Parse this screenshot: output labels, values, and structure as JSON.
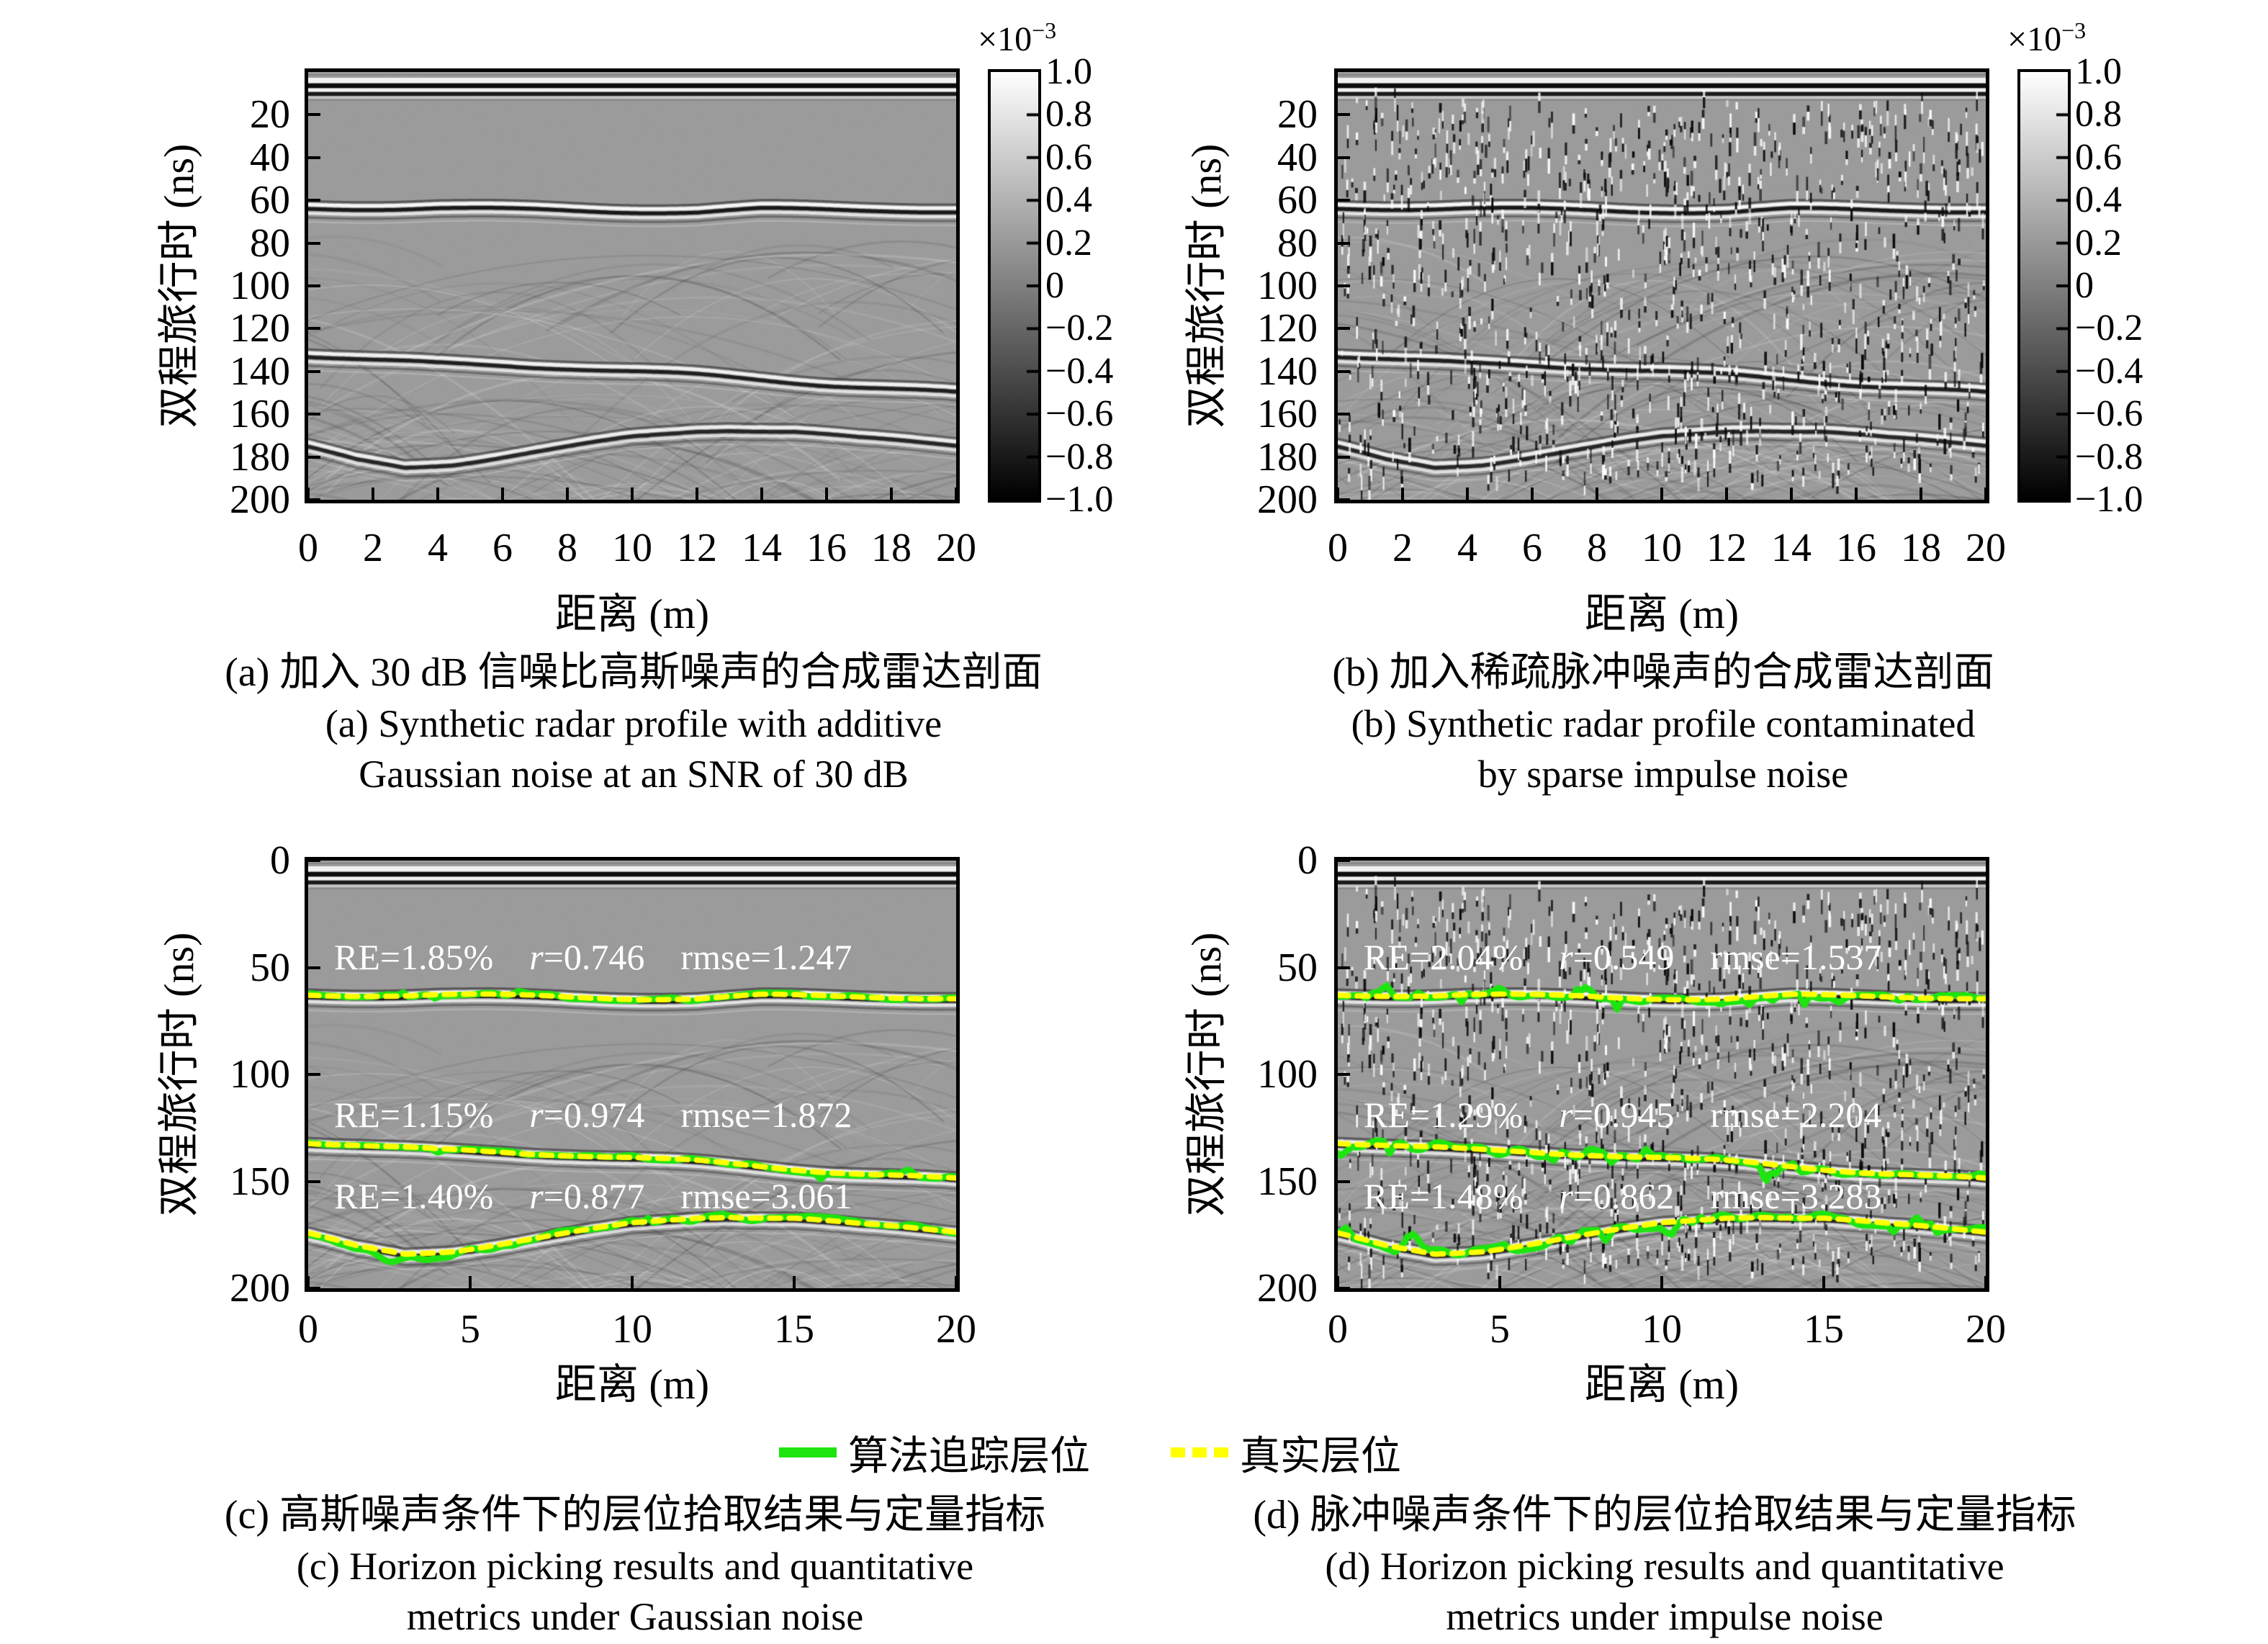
{
  "colors": {
    "plot_background": "#9b9b9b",
    "tracked_green": "#1ee410",
    "truth_yellow": "#ffff00",
    "metric_text": "#ffffff",
    "axis": "#000000"
  },
  "legend": {
    "tracked_label": "算法追踪层位",
    "truth_label": "真实层位"
  },
  "colorbar": {
    "exp_base": "×10",
    "exp_sup": "−3",
    "ticks": [
      "1.0",
      "0.8",
      "0.6",
      "0.4",
      "0.2",
      "0",
      "−0.2",
      "−0.4",
      "−0.6",
      "−0.8",
      "−1.0"
    ],
    "range": [
      -1.0,
      1.0
    ]
  },
  "horizons_ns": {
    "h1": [
      [
        0,
        63
      ],
      [
        2,
        62.5
      ],
      [
        4,
        62
      ],
      [
        6,
        62.5
      ],
      [
        8,
        63
      ],
      [
        10,
        63.5
      ],
      [
        12,
        64
      ],
      [
        14,
        63
      ],
      [
        16,
        63.5
      ],
      [
        18,
        64
      ],
      [
        20,
        65
      ]
    ],
    "h2": [
      [
        0,
        131
      ],
      [
        2,
        133
      ],
      [
        4,
        134.5
      ],
      [
        6,
        135.5
      ],
      [
        8,
        137
      ],
      [
        10,
        139
      ],
      [
        12,
        141
      ],
      [
        14,
        143.5
      ],
      [
        16,
        146
      ],
      [
        18,
        148
      ],
      [
        20,
        150
      ]
    ],
    "h3": [
      [
        0,
        174
      ],
      [
        1.5,
        180
      ],
      [
        3,
        183.5
      ],
      [
        4.5,
        182
      ],
      [
        6,
        179
      ],
      [
        8,
        175
      ],
      [
        10,
        170.5
      ],
      [
        12,
        167.5
      ],
      [
        13,
        167
      ],
      [
        15,
        168
      ],
      [
        17,
        171
      ],
      [
        20,
        173.5
      ]
    ]
  },
  "chart_data": [
    {
      "id": "a",
      "type": "heatmap",
      "noise": "additive Gaussian, SNR 30 dB",
      "impulse": false,
      "overlays": false,
      "xlabel": "距离 (m)",
      "ylabel": "双程旅行时 (ns)",
      "xlim": [
        0,
        20
      ],
      "ylim": [
        200,
        0
      ],
      "xticks": [
        0,
        2,
        4,
        6,
        8,
        10,
        12,
        14,
        16,
        18,
        20
      ],
      "yticks": [
        20,
        40,
        60,
        80,
        100,
        120,
        140,
        160,
        180,
        200
      ],
      "colorbar_scale": "1e-3",
      "colorbar_min": -1.0,
      "colorbar_max": 1.0,
      "title_zh": "(a) 加入 30 dB 信噪比高斯噪声的合成雷达剖面",
      "title_en1": "(a) Synthetic radar profile with additive",
      "title_en2": "Gaussian noise at an SNR of 30 dB"
    },
    {
      "id": "b",
      "type": "heatmap",
      "noise": "sparse impulse noise",
      "impulse": true,
      "overlays": false,
      "xlabel": "距离 (m)",
      "ylabel": "双程旅行时 (ns)",
      "xlim": [
        0,
        20
      ],
      "ylim": [
        200,
        0
      ],
      "xticks": [
        0,
        2,
        4,
        6,
        8,
        10,
        12,
        14,
        16,
        18,
        20
      ],
      "yticks": [
        20,
        40,
        60,
        80,
        100,
        120,
        140,
        160,
        180,
        200
      ],
      "colorbar_scale": "1e-3",
      "colorbar_min": -1.0,
      "colorbar_max": 1.0,
      "title_zh": "(b) 加入稀疏脉冲噪声的合成雷达剖面",
      "title_en1": "(b) Synthetic radar profile contaminated",
      "title_en2": "by sparse impulse noise"
    },
    {
      "id": "c",
      "type": "heatmap",
      "noise": "additive Gaussian, SNR 30 dB",
      "impulse": false,
      "overlays": true,
      "xlabel": "距离 (m)",
      "ylabel": "双程旅行时 (ns)",
      "xlim": [
        0,
        20
      ],
      "ylim": [
        200,
        0
      ],
      "xticks": [
        0,
        5,
        10,
        15,
        20
      ],
      "yticks": [
        0,
        50,
        100,
        150,
        200
      ],
      "metrics": [
        {
          "t_ns": 46,
          "re": "RE=1.85%",
          "r_var": "r",
          "r_rest": "=0.746",
          "rmse": "rmse=1.247",
          "RE_pct": 1.85,
          "r": 0.746,
          "rmse_val": 1.247
        },
        {
          "t_ns": 120,
          "re": "RE=1.15%",
          "r_var": "r",
          "r_rest": "=0.974",
          "rmse": "rmse=1.872",
          "RE_pct": 1.15,
          "r": 0.974,
          "rmse_val": 1.872
        },
        {
          "t_ns": 158,
          "re": "RE=1.40%",
          "r_var": "r",
          "r_rest": "=0.877",
          "rmse": "rmse=3.061",
          "RE_pct": 1.4,
          "r": 0.877,
          "rmse_val": 3.061
        }
      ],
      "title_zh": "(c) 高斯噪声条件下的层位拾取结果与定量指标",
      "title_en1": "(c) Horizon picking results and quantitative",
      "title_en2": "metrics under Gaussian noise"
    },
    {
      "id": "d",
      "type": "heatmap",
      "noise": "sparse impulse noise",
      "impulse": true,
      "overlays": true,
      "xlabel": "距离 (m)",
      "ylabel": "双程旅行时 (ns)",
      "xlim": [
        0,
        20
      ],
      "ylim": [
        200,
        0
      ],
      "xticks": [
        0,
        5,
        10,
        15,
        20
      ],
      "yticks": [
        0,
        50,
        100,
        150,
        200
      ],
      "metrics": [
        {
          "t_ns": 46,
          "re": "RE=2.04%",
          "r_var": "r",
          "r_rest": "=0.549",
          "rmse": "rmse=1.537",
          "RE_pct": 2.04,
          "r": 0.549,
          "rmse_val": 1.537
        },
        {
          "t_ns": 120,
          "re": "RE=1.29%",
          "r_var": "r",
          "r_rest": "=0.945",
          "rmse": "rmse=2.204",
          "RE_pct": 1.29,
          "r": 0.945,
          "rmse_val": 2.204
        },
        {
          "t_ns": 158,
          "re": "RE=1.48%",
          "r_var": "r",
          "r_rest": "=0.862",
          "rmse": "rmse=3.283",
          "RE_pct": 1.48,
          "r": 0.862,
          "rmse_val": 3.283
        }
      ],
      "title_zh": "(d) 脉冲噪声条件下的层位拾取结果与定量指标",
      "title_en1": "(d) Horizon picking results and quantitative",
      "title_en2": "metrics under impulse noise"
    }
  ]
}
